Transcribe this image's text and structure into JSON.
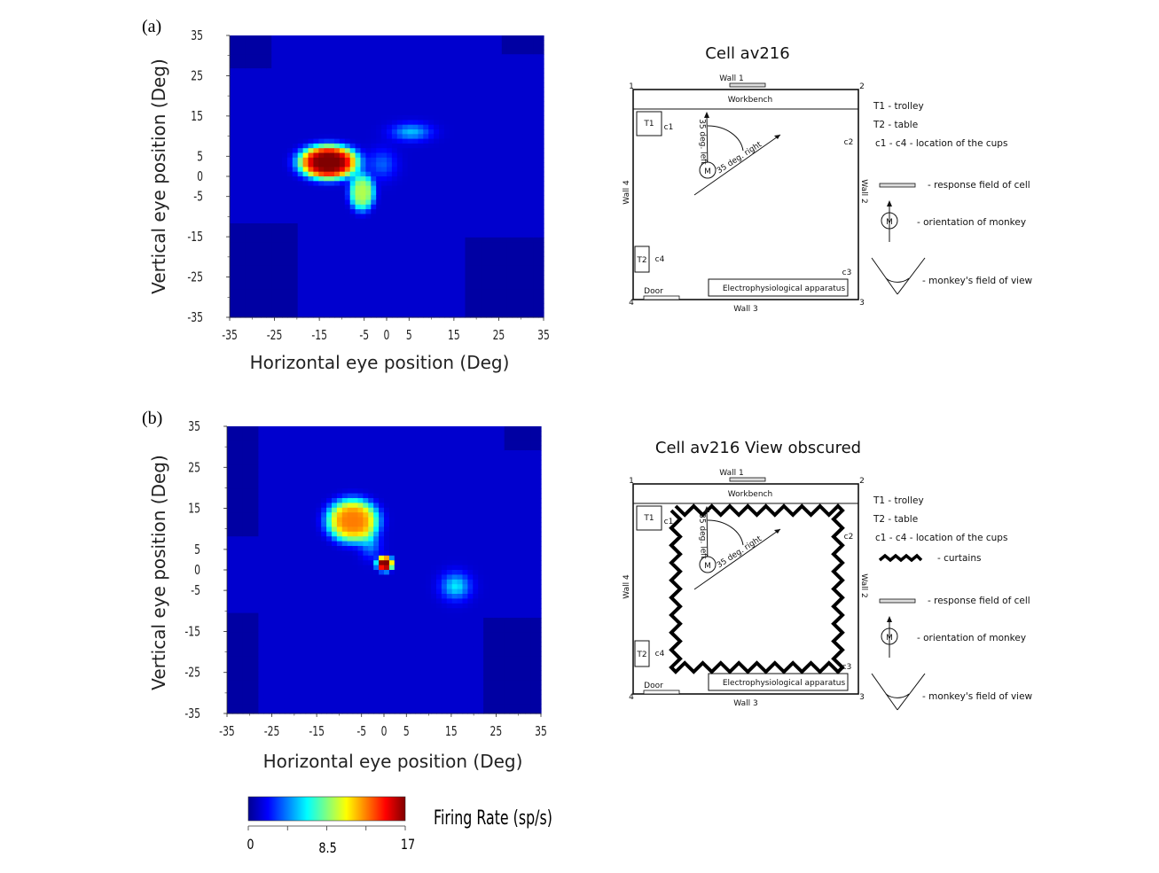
{
  "panel_labels": [
    "(a)",
    "(b)"
  ],
  "chart_data": [
    {
      "type": "heatmap",
      "panel": "(a)",
      "xlabel": "Horizontal eye position (Deg)",
      "ylabel": "Vertical eye position (Deg)",
      "xlim": [
        -35,
        35
      ],
      "ylim": [
        -35,
        35
      ],
      "x_ticks": [
        -35,
        -25,
        -15,
        -5,
        0,
        5,
        15,
        25,
        35
      ],
      "y_ticks": [
        35,
        25,
        15,
        5,
        0,
        -5,
        -15,
        -25,
        -35
      ],
      "x_tick_labels": [
        "-35",
        "-25",
        "-15",
        "-5",
        "0",
        "5",
        "15",
        "25",
        "35"
      ],
      "y_tick_labels": [
        "35",
        "25",
        "15",
        "5",
        "0",
        "-5",
        "-15",
        "-25",
        "-35"
      ],
      "peaks": [
        {
          "x": -13,
          "y": 3.5,
          "value": 17
        },
        {
          "x": -5,
          "y": -5,
          "value": 9
        },
        {
          "x": 6,
          "y": 11,
          "value": 5
        }
      ]
    },
    {
      "type": "heatmap",
      "panel": "(b)",
      "xlabel": "Horizontal eye position (Deg)",
      "ylabel": "Vertical eye position (Deg)",
      "xlim": [
        -35,
        35
      ],
      "ylim": [
        -35,
        35
      ],
      "x_ticks": [
        -35,
        -25,
        -15,
        -5,
        0,
        5,
        15,
        25,
        35
      ],
      "y_ticks": [
        35,
        25,
        15,
        5,
        0,
        -5,
        -15,
        -25,
        -35
      ],
      "x_tick_labels": [
        "-35",
        "-25",
        "-15",
        "-5",
        "0",
        "5",
        "15",
        "25",
        "35"
      ],
      "y_tick_labels": [
        "35",
        "25",
        "15",
        "5",
        "0",
        "-5",
        "-15",
        "-25",
        "-35"
      ],
      "peaks": [
        {
          "x": -7,
          "y": 13,
          "value": 13
        },
        {
          "x": 0,
          "y": 2,
          "value": 17
        },
        {
          "x": 16,
          "y": -4,
          "value": 6
        }
      ]
    }
  ],
  "colorbar": {
    "label": "Firing Rate (sp/s)",
    "tick_labels": [
      "0",
      "8.5",
      "17"
    ],
    "min": 0,
    "max": 17
  },
  "diagrams": [
    {
      "title": "Cell av216",
      "curtains": false,
      "wall1": "Wall 1",
      "wall2": "Wall 2",
      "wall3": "Wall 3",
      "wall4": "Wall 4",
      "corner1": "1",
      "corner2": "2",
      "corner3": "3",
      "corner4": "4",
      "workbench": "Workbench",
      "t1": "T1",
      "t2": "T2",
      "c1": "c1",
      "c2": "c2",
      "c3": "c3",
      "c4": "c4",
      "door": "Door",
      "apparatus": "Electrophysiological apparatus",
      "monkey": "M",
      "left_label": "35 deg. left",
      "right_label": "35 deg. right",
      "legend": {
        "t1": "T1   - trolley",
        "t2": "T2   - table",
        "cups": "c1 - c4    - location of the cups",
        "field": "- response field of cell",
        "orientation": "- orientation of monkey",
        "fov": "- monkey's field of view"
      }
    },
    {
      "title": "Cell av216 View obscured",
      "curtains": true,
      "wall1": "Wall 1",
      "wall2": "Wall 2",
      "wall3": "Wall 3",
      "wall4": "Wall 4",
      "corner1": "1",
      "corner2": "2",
      "corner3": "3",
      "corner4": "4",
      "workbench": "Workbench",
      "t1": "T1",
      "t2": "T2",
      "c1": "c1",
      "c2": "c2",
      "c3": "c3",
      "c4": "c4",
      "door": "Door",
      "apparatus": "Electrophysiological apparatus",
      "monkey": "M",
      "left_label": "35 deg. left",
      "right_label": "35 deg. right",
      "legend": {
        "t1": "T1   - trolley",
        "t2": "T2   - table",
        "cups": "c1 - c4    - location of the cups",
        "curtains": "- curtains",
        "field": "- response field of cell",
        "orientation": "- orientation of monkey",
        "fov": "- monkey's field of view"
      }
    }
  ]
}
